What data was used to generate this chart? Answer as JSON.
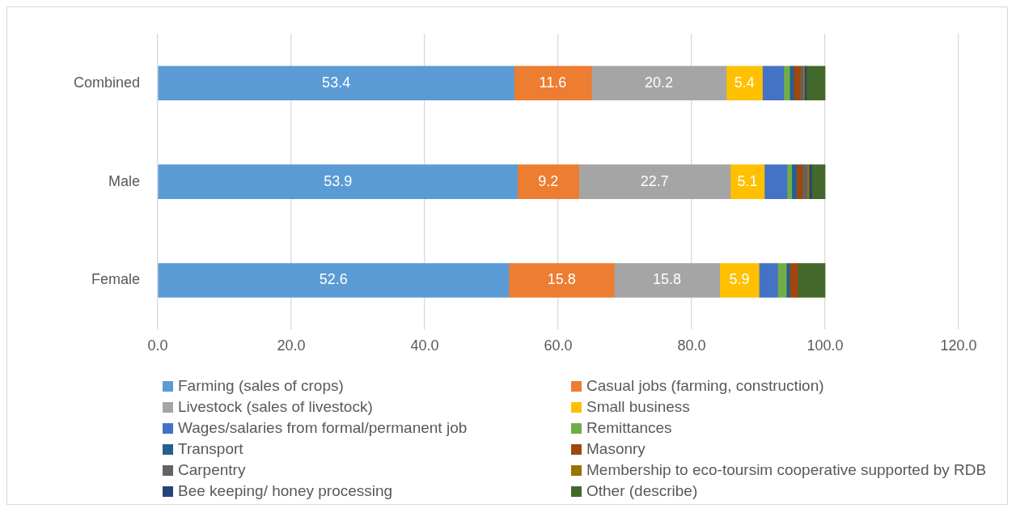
{
  "chart_data": {
    "type": "bar",
    "orientation": "horizontal",
    "stacked": true,
    "categories": [
      "Combined",
      "Male",
      "Female"
    ],
    "xlim": [
      0,
      120
    ],
    "xticks": [
      {
        "value": 0,
        "label": "0.0"
      },
      {
        "value": 20,
        "label": "20.0"
      },
      {
        "value": 40,
        "label": "40.0"
      },
      {
        "value": 60,
        "label": "60.0"
      },
      {
        "value": 80,
        "label": "80.0"
      },
      {
        "value": 100,
        "label": "100.0"
      },
      {
        "value": 120,
        "label": "120.0"
      }
    ],
    "grid": "x",
    "legend": "bottom",
    "series": [
      {
        "name": "Farming (sales of crops)",
        "color": "#5b9bd5",
        "values": [
          53.4,
          53.9,
          52.6
        ],
        "value_labels": [
          "53.4",
          "53.9",
          "52.6"
        ]
      },
      {
        "name": "Casual jobs (farming, construction)",
        "color": "#ed7d31",
        "values": [
          11.6,
          9.2,
          15.8
        ],
        "value_labels": [
          "11.6",
          "9.2",
          "15.8"
        ]
      },
      {
        "name": "Livestock (sales of livestock)",
        "color": "#a5a5a5",
        "values": [
          20.2,
          22.7,
          15.8
        ],
        "value_labels": [
          "20.2",
          "22.7",
          "15.8"
        ]
      },
      {
        "name": "Small business",
        "color": "#ffc000",
        "values": [
          5.4,
          5.1,
          5.9
        ],
        "value_labels": [
          "5.4",
          "5.1",
          "5.9"
        ]
      },
      {
        "name": "Wages/salaries from formal/permanent job",
        "color": "#4472c4",
        "values": [
          3.2,
          3.4,
          2.8
        ]
      },
      {
        "name": "Remittances",
        "color": "#70ad47",
        "values": [
          0.9,
          0.7,
          1.3
        ]
      },
      {
        "name": "Transport",
        "color": "#255e91",
        "values": [
          0.6,
          0.7,
          0.5
        ]
      },
      {
        "name": "Masonry",
        "color": "#9e480e",
        "values": [
          1.0,
          0.9,
          1.2
        ]
      },
      {
        "name": "Carpentry",
        "color": "#636363",
        "values": [
          0.4,
          0.7,
          0
        ]
      },
      {
        "name": "Membership to eco-toursim cooperative supported by RDB",
        "color": "#997300",
        "values": [
          0.2,
          0.3,
          0
        ]
      },
      {
        "name": "Bee keeping/ honey processing",
        "color": "#264478",
        "values": [
          0.3,
          0.4,
          0
        ]
      },
      {
        "name": "Other (describe)",
        "color": "#43682b",
        "values": [
          2.8,
          2.0,
          4.1
        ]
      }
    ]
  }
}
